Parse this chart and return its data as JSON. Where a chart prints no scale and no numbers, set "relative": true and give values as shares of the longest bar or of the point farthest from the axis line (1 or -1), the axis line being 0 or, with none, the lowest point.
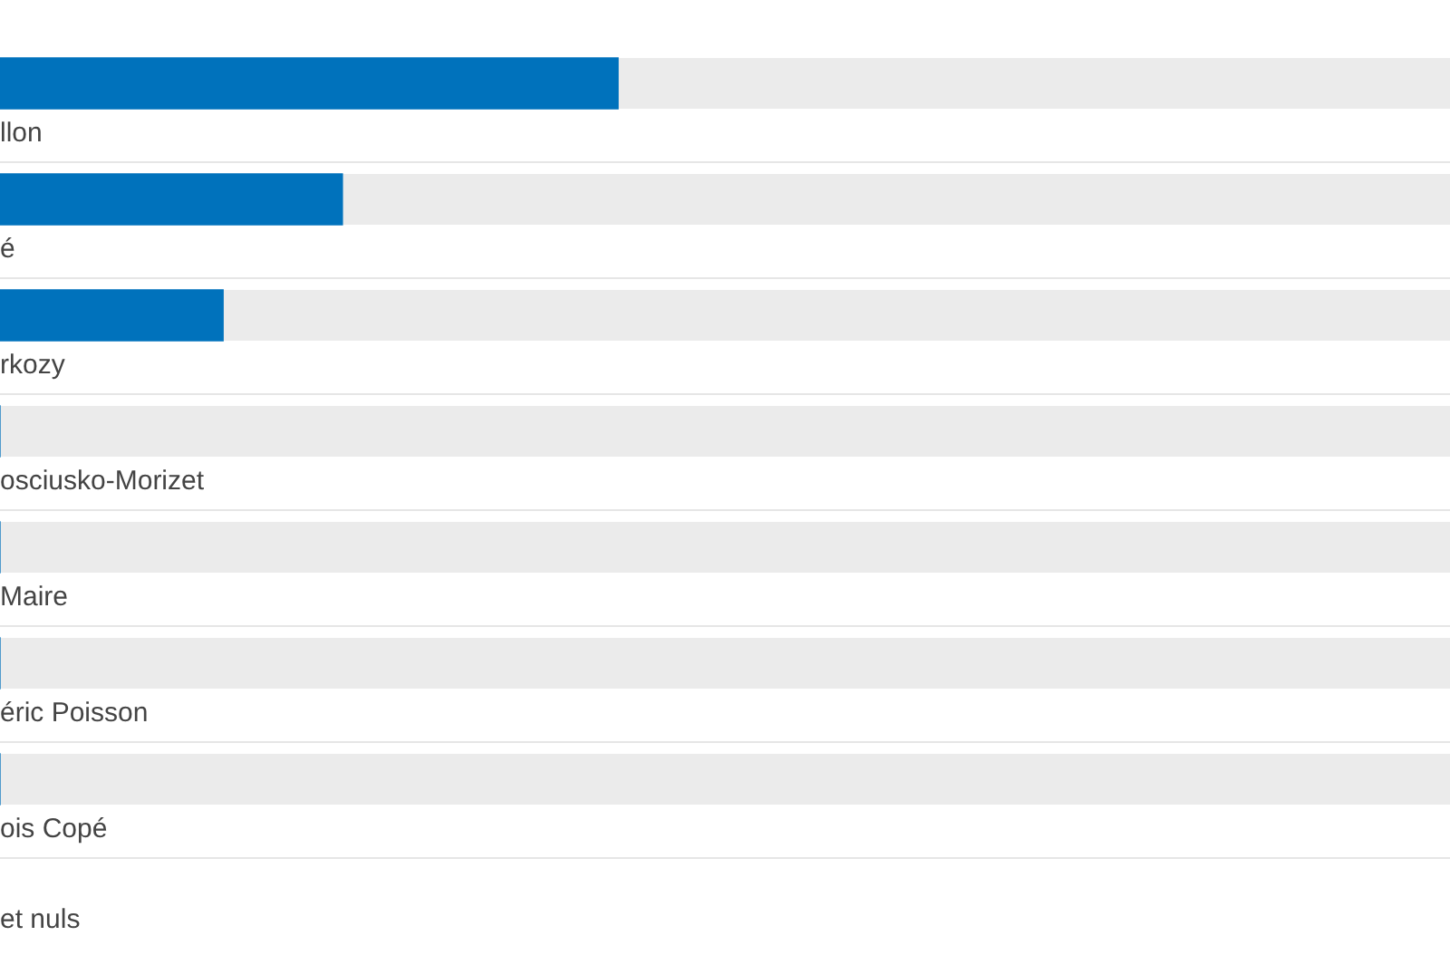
{
  "chart_data": {
    "type": "bar",
    "orientation": "horizontal",
    "relative": true,
    "color": "#0072bc",
    "categories": [
      "llon",
      "é",
      "rkozy",
      "osciusko-Morizet",
      "Maire",
      "éric Poisson",
      "ois Copé",
      "et nuls"
    ],
    "values": [
      1,
      0.554,
      0.361,
      0,
      0,
      0,
      0,
      null
    ]
  }
}
